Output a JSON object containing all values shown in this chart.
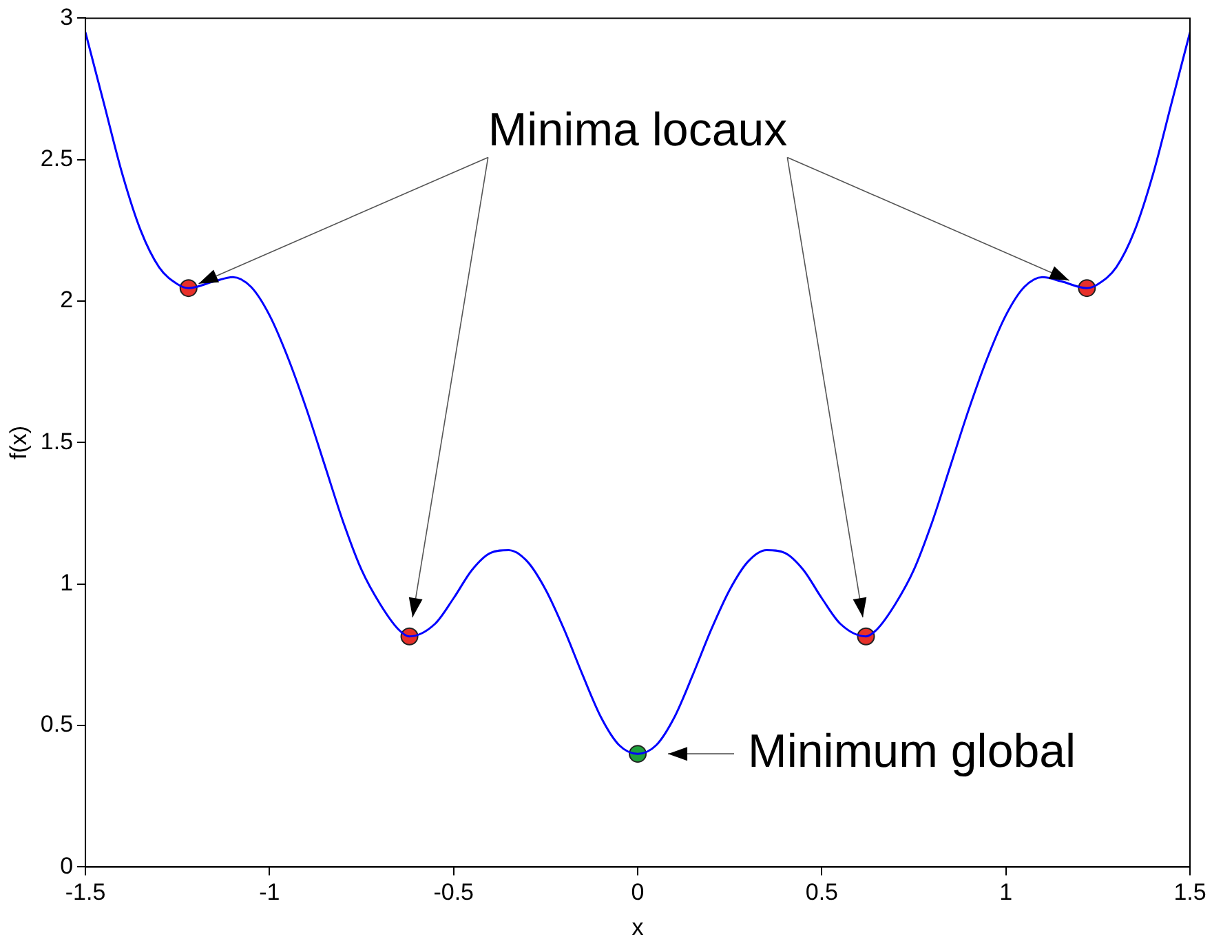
{
  "chart_data": {
    "type": "line",
    "xlabel": "x",
    "ylabel": "f(x)",
    "xlim": [
      -1.5,
      1.5
    ],
    "xticks": [
      -1.5,
      -1,
      -0.5,
      0,
      0.5,
      1,
      1.5
    ],
    "ylim": [
      0,
      3
    ],
    "yticks": [
      0,
      0.5,
      1,
      1.5,
      2,
      2.5,
      3
    ],
    "grid": false,
    "legend": false,
    "series": [
      {
        "type": "line",
        "color": "#0000ff",
        "marker": "none",
        "x": [
          -1.5,
          -1.45,
          -1.4,
          -1.35,
          -1.3,
          -1.25,
          -1.22,
          -1.15,
          -1.1,
          -1.05,
          -1,
          -0.95,
          -0.9,
          -0.85,
          -0.8,
          -0.75,
          -0.7,
          -0.65,
          -0.62,
          -0.55,
          -0.5,
          -0.45,
          -0.4,
          -0.35,
          -0.3,
          -0.25,
          -0.2,
          -0.15,
          -0.1,
          -0.05,
          0,
          0.05,
          0.1,
          0.15,
          0.2,
          0.25,
          0.3,
          0.35,
          0.4,
          0.45,
          0.5,
          0.55,
          0.62,
          0.65,
          0.7,
          0.75,
          0.8,
          0.85,
          0.9,
          0.95,
          1,
          1.05,
          1.1,
          1.15,
          1.22,
          1.25,
          1.3,
          1.35,
          1.4,
          1.45,
          1.5
        ],
        "values": [
          2.95,
          2.7,
          2.45,
          2.25,
          2.12,
          2.06,
          2.046,
          2.07,
          2.085,
          2.05,
          1.95,
          1.8,
          1.62,
          1.42,
          1.22,
          1.05,
          0.93,
          0.84,
          0.815,
          0.86,
          0.95,
          1.05,
          1.11,
          1.12,
          1.08,
          0.98,
          0.84,
          0.68,
          0.53,
          0.43,
          0.4,
          0.43,
          0.53,
          0.68,
          0.84,
          0.98,
          1.08,
          1.12,
          1.11,
          1.05,
          0.95,
          0.86,
          0.815,
          0.84,
          0.93,
          1.05,
          1.22,
          1.42,
          1.62,
          1.8,
          1.95,
          2.05,
          2.085,
          2.07,
          2.046,
          2.06,
          2.12,
          2.25,
          2.45,
          2.7,
          2.95
        ]
      },
      {
        "type": "scatter",
        "color": "#e8302a",
        "marker": "circle",
        "x": [
          -1.22,
          -0.62,
          0.62,
          1.22
        ],
        "values": [
          2.046,
          0.815,
          0.815,
          2.046
        ]
      },
      {
        "type": "scatter",
        "color": "#1fa03c",
        "marker": "circle",
        "x": [
          0
        ],
        "values": [
          0.4
        ]
      }
    ],
    "annotations": [
      {
        "text": "Minima locaux",
        "x": -1.22,
        "y": 2.046
      },
      {
        "text": "Minimum global",
        "x": 0,
        "y": 0.4
      }
    ]
  }
}
